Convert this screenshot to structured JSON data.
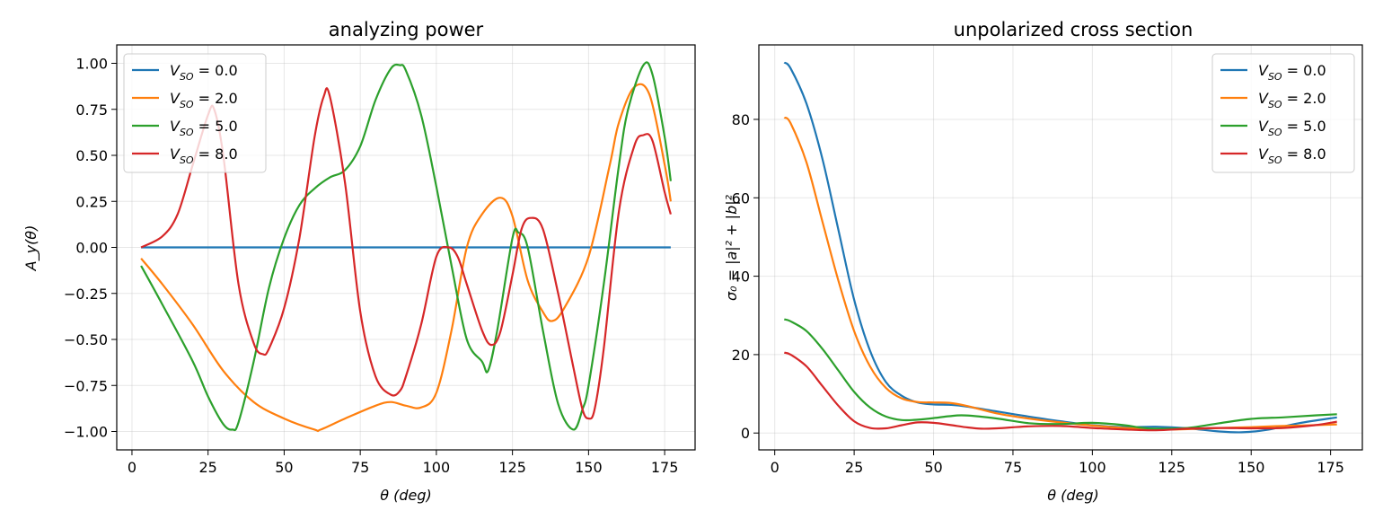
{
  "figure": {
    "left": {
      "title": "analyzing power",
      "xlabel": "θ (deg)",
      "ylabel": "A_y(θ)",
      "xticks": [
        "0",
        "25",
        "50",
        "75",
        "100",
        "125",
        "150",
        "175"
      ],
      "yticks": [
        "1.00",
        "0.75",
        "0.50",
        "0.25",
        "0.00",
        "−0.25",
        "−0.50",
        "−0.75",
        "−1.00"
      ],
      "legend": [
        "V_SO = 0.0",
        "V_SO = 2.0",
        "V_SO = 5.0",
        "V_SO = 8.0"
      ]
    },
    "right": {
      "title": "unpolarized cross section",
      "xlabel": "θ (deg)",
      "ylabel": "σ₀ = |a|² + |b|²",
      "xticks": [
        "0",
        "25",
        "50",
        "75",
        "100",
        "125",
        "150",
        "175"
      ],
      "yticks": [
        "0",
        "20",
        "40",
        "60",
        "80"
      ],
      "legend": [
        "V_SO = 0.0",
        "V_SO = 2.0",
        "V_SO = 5.0",
        "V_SO = 8.0"
      ]
    }
  },
  "chart_data": [
    {
      "type": "line",
      "title": "analyzing power",
      "xlabel": "θ (deg)",
      "ylabel": "A_y(θ)",
      "xlim": [
        -5,
        185
      ],
      "ylim": [
        -1.1,
        1.1
      ],
      "grid": true,
      "legend_position": "top-left",
      "colors": [
        "#1f77b4",
        "#ff7f0e",
        "#2ca02c",
        "#d62728"
      ],
      "series": [
        {
          "name": "V_SO = 0.0",
          "x": [
            3,
            177
          ],
          "y": [
            0.0,
            0.0
          ]
        },
        {
          "name": "V_SO = 2.0",
          "x": [
            3,
            10,
            20,
            30,
            40,
            50,
            60,
            62,
            70,
            80,
            85,
            90,
            95,
            100,
            105,
            110,
            115,
            121,
            125,
            130,
            135,
            138,
            142,
            150,
            157,
            160,
            165,
            170,
            175,
            177
          ],
          "y": [
            -0.06,
            -0.2,
            -0.42,
            -0.67,
            -0.84,
            -0.93,
            -0.99,
            -0.99,
            -0.93,
            -0.86,
            -0.84,
            -0.86,
            -0.87,
            -0.79,
            -0.45,
            0.0,
            0.18,
            0.27,
            0.17,
            -0.18,
            -0.35,
            -0.4,
            -0.33,
            -0.05,
            0.45,
            0.68,
            0.87,
            0.83,
            0.45,
            0.25
          ]
        },
        {
          "name": "V_SO = 5.0",
          "x": [
            3,
            10,
            20,
            25,
            30,
            33,
            35,
            40,
            45,
            50,
            55,
            60,
            65,
            70,
            75,
            80,
            85,
            88,
            90,
            95,
            100,
            105,
            110,
            115,
            117,
            120,
            125,
            127,
            130,
            135,
            140,
            145,
            148,
            150,
            155,
            160,
            163,
            168,
            171,
            175,
            177
          ],
          "y": [
            -0.1,
            -0.31,
            -0.62,
            -0.81,
            -0.96,
            -0.99,
            -0.95,
            -0.62,
            -0.22,
            0.05,
            0.23,
            0.32,
            0.38,
            0.42,
            0.55,
            0.8,
            0.97,
            0.99,
            0.96,
            0.72,
            0.33,
            -0.1,
            -0.5,
            -0.62,
            -0.67,
            -0.45,
            0.05,
            0.08,
            0.0,
            -0.45,
            -0.85,
            -0.99,
            -0.88,
            -0.75,
            -0.2,
            0.45,
            0.75,
            0.99,
            0.94,
            0.6,
            0.36
          ]
        },
        {
          "name": "V_SO = 8.0",
          "x": [
            3,
            10,
            15,
            20,
            25,
            27,
            30,
            35,
            40,
            43,
            45,
            50,
            55,
            60,
            63,
            65,
            70,
            75,
            80,
            85,
            88,
            90,
            95,
            100,
            104,
            107,
            110,
            115,
            118,
            121,
            125,
            128,
            131,
            135,
            140,
            145,
            148,
            150,
            152,
            155,
            160,
            165,
            168,
            171,
            175,
            177
          ],
          "y": [
            0.0,
            0.06,
            0.18,
            0.45,
            0.72,
            0.75,
            0.5,
            -0.2,
            -0.52,
            -0.58,
            -0.55,
            -0.33,
            0.05,
            0.6,
            0.82,
            0.82,
            0.35,
            -0.35,
            -0.7,
            -0.8,
            -0.78,
            -0.7,
            -0.42,
            -0.05,
            0.0,
            -0.05,
            -0.2,
            -0.45,
            -0.53,
            -0.46,
            -0.15,
            0.1,
            0.16,
            0.1,
            -0.25,
            -0.65,
            -0.88,
            -0.93,
            -0.88,
            -0.55,
            0.2,
            0.55,
            0.61,
            0.58,
            0.3,
            0.18
          ]
        }
      ]
    },
    {
      "type": "line",
      "title": "unpolarized cross section",
      "xlabel": "θ (deg)",
      "ylabel": "σ₀ = |a|² + |b|²",
      "xlim": [
        -5,
        185
      ],
      "ylim": [
        -4.3,
        99
      ],
      "grid": true,
      "legend_position": "top-right",
      "colors": [
        "#1f77b4",
        "#ff7f0e",
        "#2ca02c",
        "#d62728"
      ],
      "series": [
        {
          "name": "V_SO = 0.0",
          "x": [
            3,
            5,
            10,
            15,
            20,
            25,
            30,
            35,
            40,
            45,
            50,
            55,
            60,
            70,
            80,
            90,
            100,
            110,
            120,
            130,
            140,
            147,
            155,
            165,
            177
          ],
          "y": [
            94.5,
            93,
            84,
            70,
            52,
            34,
            21,
            13,
            9.5,
            7.8,
            7.3,
            7.2,
            6.8,
            5.5,
            4.2,
            3.0,
            2.0,
            1.5,
            1.6,
            1.2,
            0.4,
            0.2,
            0.8,
            2.5,
            4.0
          ]
        },
        {
          "name": "V_SO = 2.0",
          "x": [
            3,
            5,
            10,
            15,
            20,
            25,
            30,
            35,
            40,
            45,
            50,
            55,
            60,
            70,
            80,
            90,
            100,
            110,
            120,
            130,
            140,
            150,
            160,
            170,
            177
          ],
          "y": [
            80.5,
            79,
            69,
            54,
            39,
            26,
            17,
            11.5,
            8.8,
            7.9,
            7.8,
            7.7,
            7.0,
            5.0,
            3.7,
            2.7,
            1.9,
            1.3,
            0.9,
            1.0,
            1.3,
            1.5,
            1.8,
            2.0,
            2.2
          ]
        },
        {
          "name": "V_SO = 5.0",
          "x": [
            3,
            5,
            10,
            15,
            20,
            25,
            30,
            35,
            40,
            45,
            50,
            55,
            60,
            70,
            80,
            90,
            100,
            110,
            115,
            120,
            130,
            140,
            150,
            160,
            170,
            177
          ],
          "y": [
            29,
            28.5,
            26,
            21.5,
            16,
            10.5,
            6.5,
            4.2,
            3.3,
            3.4,
            3.8,
            4.3,
            4.5,
            3.7,
            2.5,
            2.3,
            2.6,
            2.0,
            1.4,
            1.1,
            1.3,
            2.5,
            3.6,
            4.0,
            4.5,
            4.8
          ]
        },
        {
          "name": "V_SO = 8.0",
          "x": [
            3,
            5,
            10,
            15,
            20,
            25,
            30,
            35,
            40,
            45,
            50,
            55,
            60,
            65,
            70,
            80,
            90,
            100,
            110,
            120,
            130,
            140,
            150,
            160,
            170,
            177
          ],
          "y": [
            20.5,
            20,
            17,
            12,
            7,
            3,
            1.3,
            1.2,
            2.0,
            2.7,
            2.6,
            2.1,
            1.5,
            1.1,
            1.2,
            1.7,
            1.8,
            1.3,
            0.9,
            0.7,
            1.1,
            1.3,
            1.2,
            1.3,
            2.0,
            2.9
          ]
        }
      ]
    }
  ]
}
